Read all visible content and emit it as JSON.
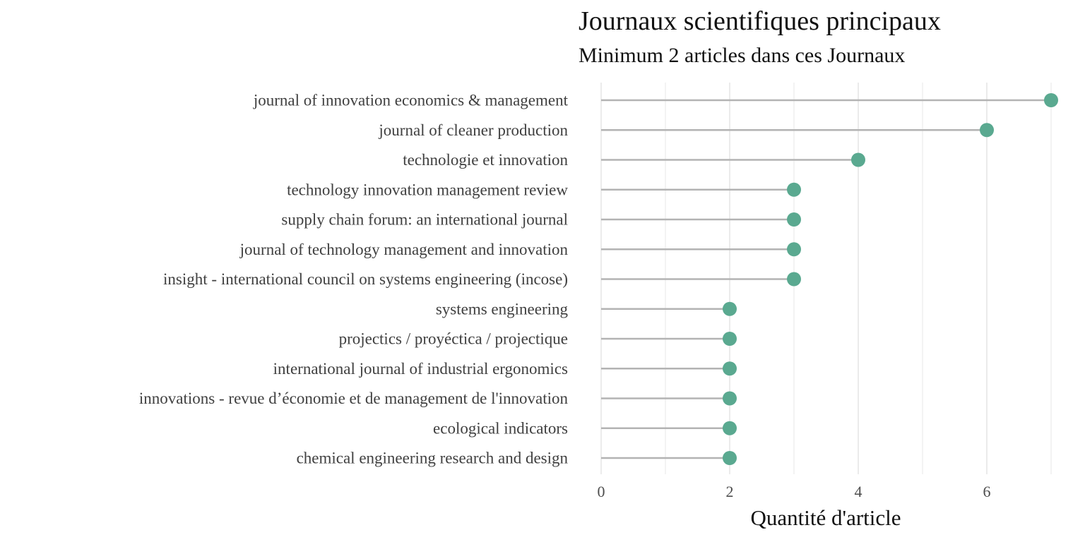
{
  "chart_data": {
    "type": "lollipop",
    "title": "Journaux scientifiques principaux",
    "subtitle": "Minimum 2 articles dans ces Journaux",
    "xlabel": "Quantité  d'article",
    "ylabel": "",
    "xlim": [
      0,
      7
    ],
    "xticks": [
      0,
      2,
      4,
      6
    ],
    "grid": true,
    "colors": {
      "point": "#5aa990",
      "stem": "#b3b3b3",
      "grid": "#ebebeb"
    },
    "categories": [
      "journal of innovation economics & management",
      "journal of cleaner production",
      "technologie et innovation",
      "technology innovation management review",
      "supply chain forum: an international journal",
      "journal of technology management and innovation",
      "insight - international council on systems engineering (incose)",
      "systems engineering",
      "projectics / proyéctica / projectique",
      "international journal of industrial ergonomics",
      "innovations - revue d’économie et de management de l'innovation",
      "ecological indicators",
      "chemical engineering research and design"
    ],
    "values": [
      7,
      6,
      4,
      3,
      3,
      3,
      3,
      2,
      2,
      2,
      2,
      2,
      2
    ]
  }
}
